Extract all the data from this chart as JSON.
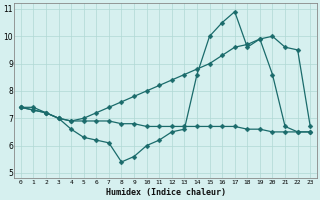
{
  "xlabel": "Humidex (Indice chaleur)",
  "bg_color": "#d6f0ef",
  "line_color": "#1a6b6b",
  "grid_color": "#b0d8d4",
  "xlim_min": -0.5,
  "xlim_max": 23.5,
  "ylim_min": 4.8,
  "ylim_max": 11.2,
  "xticks": [
    0,
    1,
    2,
    3,
    4,
    5,
    6,
    7,
    8,
    9,
    10,
    11,
    12,
    13,
    14,
    15,
    16,
    17,
    18,
    19,
    20,
    21,
    22,
    23
  ],
  "yticks": [
    5,
    6,
    7,
    8,
    9,
    10,
    11
  ],
  "line1_x": [
    0,
    1,
    2,
    3,
    4,
    5,
    6,
    7,
    8,
    9,
    10,
    11,
    12,
    13,
    14,
    15,
    16,
    17,
    18,
    19,
    20,
    21,
    22,
    23
  ],
  "line1_y": [
    7.4,
    7.4,
    7.2,
    7.0,
    6.6,
    6.3,
    6.2,
    6.1,
    5.4,
    5.6,
    6.0,
    6.2,
    6.5,
    6.6,
    8.6,
    10.0,
    10.5,
    10.9,
    9.6,
    9.9,
    8.6,
    6.7,
    6.5,
    6.5
  ],
  "line2_x": [
    0,
    1,
    2,
    3,
    4,
    5,
    6,
    7,
    8,
    9,
    10,
    11,
    12,
    13,
    14,
    15,
    16,
    17,
    18,
    19,
    20,
    21,
    22,
    23
  ],
  "line2_y": [
    7.4,
    7.3,
    7.2,
    7.0,
    6.9,
    7.0,
    7.2,
    7.4,
    7.6,
    7.8,
    8.0,
    8.2,
    8.4,
    8.6,
    8.8,
    9.0,
    9.3,
    9.6,
    9.7,
    9.9,
    10.0,
    9.6,
    9.5,
    6.7
  ],
  "line3_x": [
    0,
    1,
    2,
    3,
    4,
    5,
    6,
    7,
    8,
    9,
    10,
    11,
    12,
    13,
    14,
    15,
    16,
    17,
    18,
    19,
    20,
    21,
    22,
    23
  ],
  "line3_y": [
    7.4,
    7.3,
    7.2,
    7.0,
    6.9,
    6.9,
    6.9,
    6.9,
    6.8,
    6.8,
    6.7,
    6.7,
    6.7,
    6.7,
    6.7,
    6.7,
    6.7,
    6.7,
    6.6,
    6.6,
    6.5,
    6.5,
    6.5,
    6.5
  ]
}
